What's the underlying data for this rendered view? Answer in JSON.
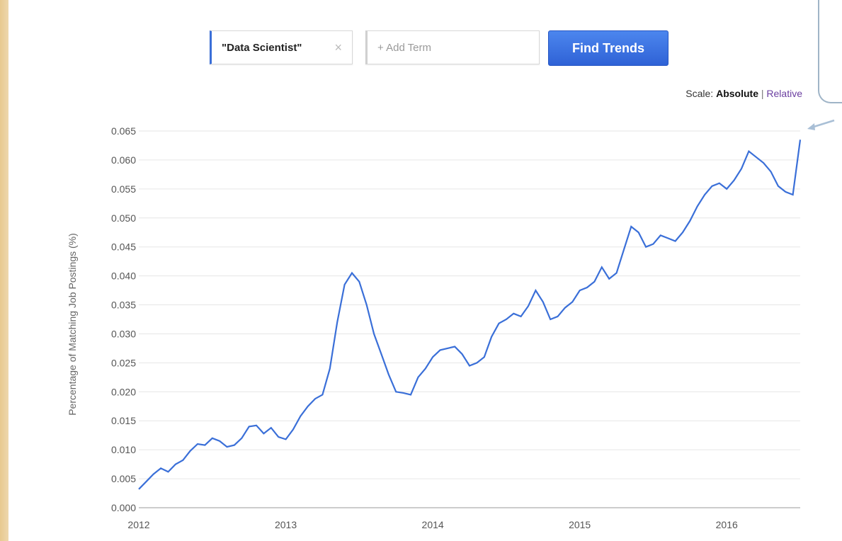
{
  "search": {
    "term1": "\"Data Scientist\"",
    "term1_remove": "×",
    "add_term_placeholder": "+ Add Term",
    "find_button": "Find Trends"
  },
  "scale": {
    "label": "Scale:",
    "absolute": "Absolute",
    "separator": "|",
    "relative": "Relative"
  },
  "colors": {
    "line": "#3a6fd8",
    "button": "#2f62d6",
    "relative_link": "#6b3fa0"
  },
  "chart_data": {
    "type": "line",
    "ylabel": "Percentage of Matching Job Postings (%)",
    "x_ticks": [
      "2012",
      "2013",
      "2014",
      "2015",
      "2016"
    ],
    "y_ticks": [
      "0.000",
      "0.005",
      "0.010",
      "0.015",
      "0.020",
      "0.025",
      "0.030",
      "0.035",
      "0.040",
      "0.045",
      "0.050",
      "0.055",
      "0.060",
      "0.065"
    ],
    "ylim": [
      0,
      0.065
    ],
    "xlim": [
      2012.0,
      2016.5
    ],
    "grid": true,
    "series": [
      {
        "x": [
          2012.0,
          2012.05,
          2012.1,
          2012.15,
          2012.2,
          2012.25,
          2012.3,
          2012.35,
          2012.4,
          2012.45,
          2012.5,
          2012.55,
          2012.6,
          2012.65,
          2012.7,
          2012.75,
          2012.8,
          2012.85,
          2012.9,
          2012.95,
          2013.0,
          2013.05,
          2013.1,
          2013.15,
          2013.2,
          2013.25,
          2013.3,
          2013.35,
          2013.4,
          2013.45,
          2013.5,
          2013.55,
          2013.6,
          2013.65,
          2013.7,
          2013.75,
          2013.8,
          2013.85,
          2013.9,
          2013.95,
          2014.0,
          2014.05,
          2014.1,
          2014.15,
          2014.2,
          2014.25,
          2014.3,
          2014.35,
          2014.4,
          2014.45,
          2014.5,
          2014.55,
          2014.6,
          2014.65,
          2014.7,
          2014.75,
          2014.8,
          2014.85,
          2014.9,
          2014.95,
          2015.0,
          2015.05,
          2015.1,
          2015.15,
          2015.2,
          2015.25,
          2015.3,
          2015.35,
          2015.4,
          2015.45,
          2015.5,
          2015.55,
          2015.6,
          2015.65,
          2015.7,
          2015.75,
          2015.8,
          2015.85,
          2015.9,
          2015.95,
          2016.0,
          2016.05,
          2016.1,
          2016.15,
          2016.2,
          2016.25,
          2016.3,
          2016.35,
          2016.4,
          2016.45,
          2016.5
        ],
        "y": [
          0.0032,
          0.0045,
          0.0058,
          0.0068,
          0.0062,
          0.0075,
          0.0082,
          0.0098,
          0.011,
          0.0108,
          0.012,
          0.0115,
          0.0105,
          0.0108,
          0.012,
          0.014,
          0.0142,
          0.0128,
          0.0138,
          0.0122,
          0.0118,
          0.0135,
          0.0158,
          0.0175,
          0.0188,
          0.0195,
          0.024,
          0.032,
          0.0385,
          0.0405,
          0.039,
          0.035,
          0.03,
          0.0265,
          0.023,
          0.02,
          0.0198,
          0.0195,
          0.0225,
          0.024,
          0.026,
          0.0272,
          0.0275,
          0.0278,
          0.0265,
          0.0245,
          0.025,
          0.026,
          0.0295,
          0.0318,
          0.0325,
          0.0335,
          0.033,
          0.0348,
          0.0375,
          0.0355,
          0.0325,
          0.033,
          0.0345,
          0.0355,
          0.0375,
          0.038,
          0.039,
          0.0415,
          0.0395,
          0.0405,
          0.0445,
          0.0485,
          0.0475,
          0.045,
          0.0455,
          0.047,
          0.0465,
          0.046,
          0.0475,
          0.0495,
          0.052,
          0.054,
          0.0555,
          0.056,
          0.055,
          0.0565,
          0.0585,
          0.0615,
          0.0605,
          0.0595,
          0.058,
          0.0555,
          0.0545,
          0.054,
          0.0635
        ]
      }
    ]
  }
}
